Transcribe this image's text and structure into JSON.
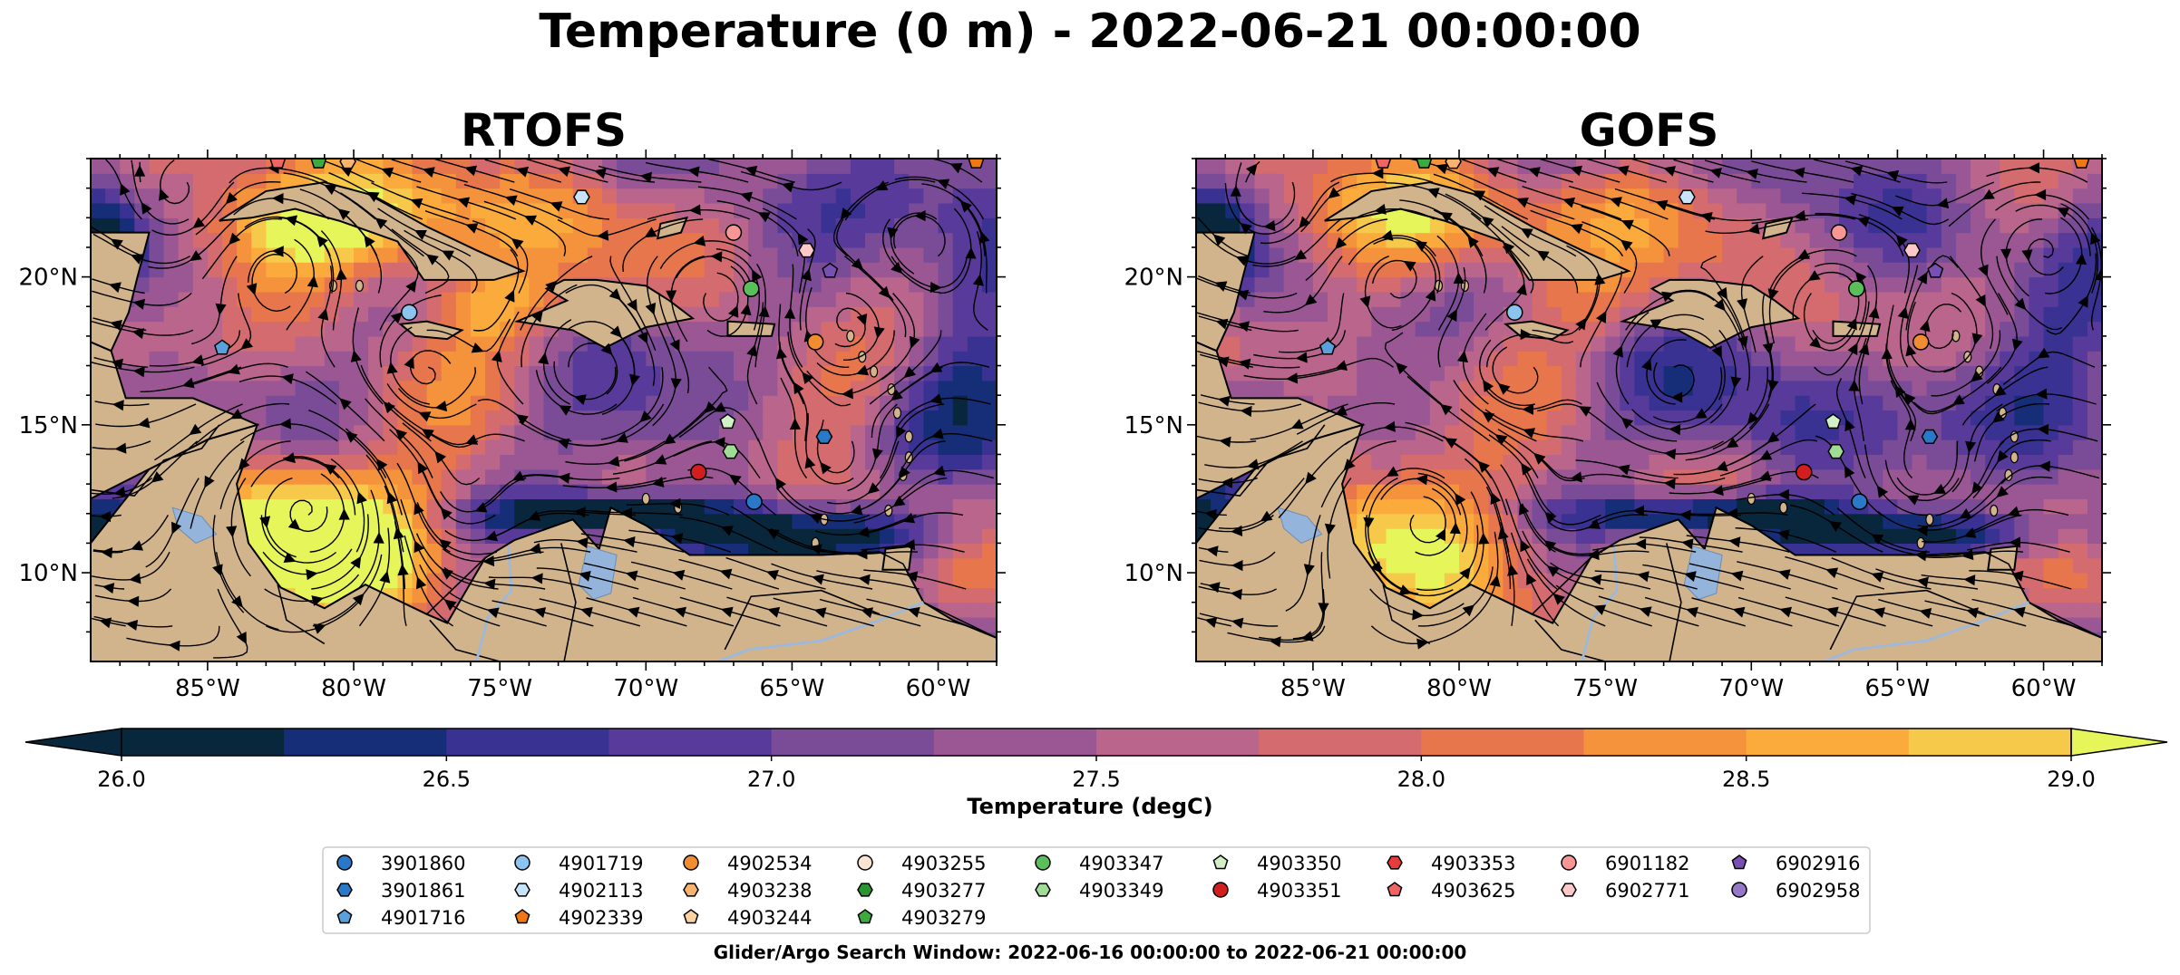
{
  "title": "Temperature (0 m) - 2022-06-21 00:00:00",
  "panels": [
    {
      "title": "RTOFS"
    },
    {
      "title": "GOFS"
    }
  ],
  "axes": {
    "lon_ticks": [
      "85°W",
      "80°W",
      "75°W",
      "70°W",
      "65°W",
      "60°W"
    ],
    "lat_ticks": [
      "20°N",
      "15°N",
      "10°N"
    ]
  },
  "colorbar": {
    "label": "Temperature (degC)",
    "ticks": [
      "26.0",
      "26.5",
      "27.0",
      "27.5",
      "28.0",
      "28.5",
      "29.0"
    ],
    "colors": [
      "#08263c",
      "#162e78",
      "#3a3292",
      "#583a9b",
      "#7a4c98",
      "#9a5794",
      "#b9658c",
      "#d46b6e",
      "#e8764c",
      "#f5923c",
      "#faab3c",
      "#f6c94a",
      "#e5f55a"
    ]
  },
  "legend": {
    "items": [
      {
        "label": "3901860",
        "color": "#2a78c8",
        "marker": "circle"
      },
      {
        "label": "3901861",
        "color": "#2a78c8",
        "marker": "hexagon"
      },
      {
        "label": "4901716",
        "color": "#5aa0dc",
        "marker": "pentagon"
      },
      {
        "label": "4901719",
        "color": "#8cc4f0",
        "marker": "circle"
      },
      {
        "label": "4902113",
        "color": "#c8e4f8",
        "marker": "hexagon"
      },
      {
        "label": "4902339",
        "color": "#f07814",
        "marker": "pentagon"
      },
      {
        "label": "4902534",
        "color": "#f08c32",
        "marker": "circle"
      },
      {
        "label": "4903238",
        "color": "#f8b46e",
        "marker": "hexagon"
      },
      {
        "label": "4903244",
        "color": "#fcd2a0",
        "marker": "pentagon"
      },
      {
        "label": "4903255",
        "color": "#fce4d2",
        "marker": "circle"
      },
      {
        "label": "4903277",
        "color": "#2a9632",
        "marker": "hexagon"
      },
      {
        "label": "4903279",
        "color": "#3caa3c",
        "marker": "pentagon"
      },
      {
        "label": "4903347",
        "color": "#5abe5a",
        "marker": "circle"
      },
      {
        "label": "4903349",
        "color": "#a0dc96",
        "marker": "hexagon"
      },
      {
        "label": "4903350",
        "color": "#d2f0c8",
        "marker": "pentagon"
      },
      {
        "label": "4903351",
        "color": "#d21e1e",
        "marker": "circle"
      },
      {
        "label": "4903353",
        "color": "#e63c3c",
        "marker": "hexagon"
      },
      {
        "label": "4903625",
        "color": "#f06464",
        "marker": "pentagon"
      },
      {
        "label": "6901182",
        "color": "#f89696",
        "marker": "circle"
      },
      {
        "label": "6902771",
        "color": "#fcc8c8",
        "marker": "hexagon"
      },
      {
        "label": "6902916",
        "color": "#7850b4",
        "marker": "pentagon"
      },
      {
        "label": "6902958",
        "color": "#9678c8",
        "marker": "circle"
      }
    ]
  },
  "note": "Glider/Argo Search Window: 2022-06-16 00:00:00 to 2022-06-21 00:00:00",
  "chart_data": {
    "type": "heatmap",
    "title": "Temperature (0 m) - 2022-06-21 00:00:00",
    "subplots": [
      "RTOFS",
      "GOFS"
    ],
    "variable": "Temperature",
    "units": "degC",
    "xlim": [
      -89,
      -58
    ],
    "ylim": [
      7,
      24
    ],
    "clim": [
      26.0,
      29.0
    ],
    "colorbar_extend": "both",
    "x_ticks": [
      -85,
      -80,
      -75,
      -70,
      -65,
      -60
    ],
    "y_ticks": [
      20,
      15,
      10
    ],
    "floats": [
      {
        "id": "3901860",
        "lon": -66.3,
        "lat": 12.4,
        "marker": "circle",
        "color": "#2a78c8"
      },
      {
        "id": "3901861",
        "lon": -63.9,
        "lat": 14.6,
        "marker": "hexagon",
        "color": "#2a78c8"
      },
      {
        "id": "4901716",
        "lon": -84.5,
        "lat": 17.6,
        "marker": "pentagon",
        "color": "#5aa0dc"
      },
      {
        "id": "4901719",
        "lon": -78.1,
        "lat": 18.8,
        "marker": "circle",
        "color": "#8cc4f0"
      },
      {
        "id": "4902113",
        "lon": -72.2,
        "lat": 22.7,
        "marker": "hexagon",
        "color": "#c8e4f8"
      },
      {
        "id": "4902339",
        "lon": -58.7,
        "lat": 23.9,
        "marker": "pentagon",
        "color": "#f07814"
      },
      {
        "id": "4902534",
        "lon": -64.2,
        "lat": 17.8,
        "marker": "circle",
        "color": "#f08c32"
      },
      {
        "id": "4903238",
        "lon": -80.2,
        "lat": 23.9,
        "marker": "hexagon",
        "color": "#f8b46e"
      },
      {
        "id": "4903347",
        "lon": -66.4,
        "lat": 19.6,
        "marker": "circle",
        "color": "#5abe5a"
      },
      {
        "id": "4903349",
        "lon": -67.1,
        "lat": 14.1,
        "marker": "hexagon",
        "color": "#a0dc96"
      },
      {
        "id": "4903350",
        "lon": -67.2,
        "lat": 15.1,
        "marker": "pentagon",
        "color": "#d2f0c8"
      },
      {
        "id": "4903351",
        "lon": -68.2,
        "lat": 13.4,
        "marker": "circle",
        "color": "#d21e1e"
      },
      {
        "id": "4903279",
        "lon": -81.2,
        "lat": 23.9,
        "marker": "pentagon",
        "color": "#3caa3c"
      },
      {
        "id": "4903625",
        "lon": -82.6,
        "lat": 23.9,
        "marker": "pentagon",
        "color": "#f06464"
      },
      {
        "id": "6901182",
        "lon": -67.0,
        "lat": 21.5,
        "marker": "circle",
        "color": "#f89696"
      },
      {
        "id": "6902771",
        "lon": -64.5,
        "lat": 20.9,
        "marker": "hexagon",
        "color": "#fcc8c8"
      },
      {
        "id": "6902916",
        "lon": -63.7,
        "lat": 20.2,
        "marker": "pentagon",
        "color": "#7850b4"
      }
    ]
  }
}
